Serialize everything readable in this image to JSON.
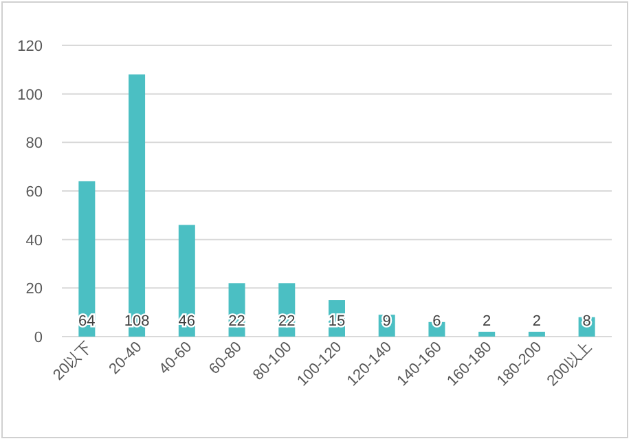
{
  "chart_data": {
    "type": "bar",
    "categories": [
      "20以下",
      "20-40",
      "40-60",
      "60-80",
      "80-100",
      "100-120",
      "120-140",
      "140-160",
      "160-180",
      "180-200",
      "200以上"
    ],
    "values": [
      64,
      108,
      46,
      22,
      22,
      15,
      9,
      6,
      2,
      2,
      8
    ],
    "color": "#4bbfc3",
    "ylim": [
      0,
      120
    ],
    "yticks": [
      0,
      20,
      40,
      60,
      80,
      100,
      120
    ],
    "grid": "y",
    "data_labels": true
  }
}
